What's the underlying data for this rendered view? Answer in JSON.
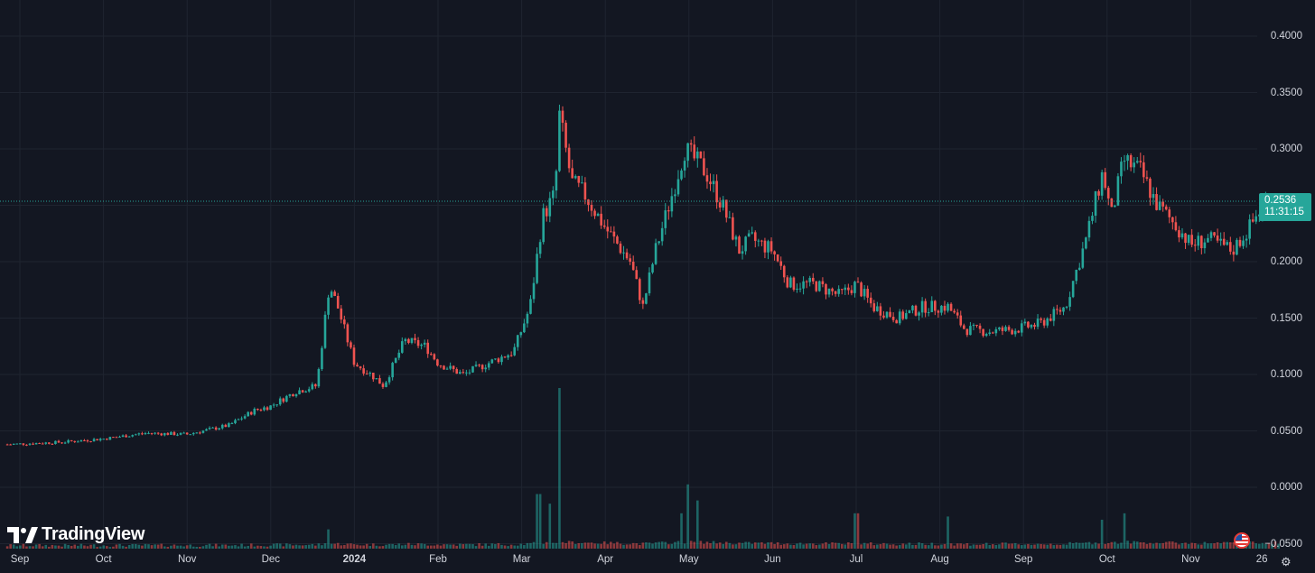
{
  "app": {
    "brand": "TradingView",
    "flag_icon": "us-flag-icon",
    "settings_icon": "gear-icon"
  },
  "price_badge": {
    "price": "0.2536",
    "countdown": "11:31:15"
  },
  "colors": {
    "background": "#131722",
    "up": "#26a69a",
    "down": "#ef5350",
    "grid": "#1f2430",
    "price_line": "#26a69a"
  },
  "chart_data": {
    "type": "candlestick",
    "title": "",
    "xlabel": "",
    "ylabel": "",
    "ylim": [
      -0.05,
      0.4
    ],
    "y_ticks": [
      "0.4000",
      "0.3500",
      "0.3000",
      "0.2500",
      "0.2000",
      "0.1500",
      "0.1000",
      "0.0500",
      "0.0000",
      "−0.0500"
    ],
    "x_ticks": [
      {
        "label": "Sep",
        "t": 0.0
      },
      {
        "label": "Oct",
        "t": 1.0
      },
      {
        "label": "Nov",
        "t": 2.0
      },
      {
        "label": "Dec",
        "t": 3.0
      },
      {
        "label": "2024",
        "t": 4.0,
        "bold": true
      },
      {
        "label": "Feb",
        "t": 5.0
      },
      {
        "label": "Mar",
        "t": 6.0
      },
      {
        "label": "Apr",
        "t": 7.0
      },
      {
        "label": "May",
        "t": 8.0
      },
      {
        "label": "Jun",
        "t": 9.0
      },
      {
        "label": "Jul",
        "t": 10.0
      },
      {
        "label": "Aug",
        "t": 11.0
      },
      {
        "label": "Sep",
        "t": 12.0
      },
      {
        "label": "Oct",
        "t": 13.0
      },
      {
        "label": "Nov",
        "t": 14.0
      },
      {
        "label": "26",
        "t": 14.85
      }
    ],
    "x_range": [
      -0.15,
      15.4
    ],
    "last_price": 0.2536,
    "price_path": [
      [
        -0.15,
        0.038
      ],
      [
        0.5,
        0.04
      ],
      [
        1.0,
        0.043
      ],
      [
        1.5,
        0.048
      ],
      [
        2.0,
        0.047
      ],
      [
        2.5,
        0.055
      ],
      [
        2.8,
        0.068
      ],
      [
        3.0,
        0.072
      ],
      [
        3.3,
        0.085
      ],
      [
        3.55,
        0.09
      ],
      [
        3.7,
        0.18
      ],
      [
        3.8,
        0.16
      ],
      [
        4.0,
        0.11
      ],
      [
        4.2,
        0.1
      ],
      [
        4.35,
        0.09
      ],
      [
        4.6,
        0.13
      ],
      [
        4.85,
        0.125
      ],
      [
        5.0,
        0.11
      ],
      [
        5.3,
        0.1
      ],
      [
        5.6,
        0.11
      ],
      [
        5.9,
        0.12
      ],
      [
        6.1,
        0.16
      ],
      [
        6.25,
        0.24
      ],
      [
        6.4,
        0.26
      ],
      [
        6.45,
        0.33
      ],
      [
        6.6,
        0.27
      ],
      [
        6.75,
        0.26
      ],
      [
        7.0,
        0.23
      ],
      [
        7.3,
        0.2
      ],
      [
        7.45,
        0.16
      ],
      [
        7.6,
        0.21
      ],
      [
        7.8,
        0.26
      ],
      [
        7.95,
        0.3
      ],
      [
        8.2,
        0.28
      ],
      [
        8.4,
        0.25
      ],
      [
        8.6,
        0.21
      ],
      [
        8.75,
        0.22
      ],
      [
        9.0,
        0.21
      ],
      [
        9.2,
        0.18
      ],
      [
        9.5,
        0.18
      ],
      [
        9.8,
        0.17
      ],
      [
        10.0,
        0.18
      ],
      [
        10.2,
        0.16
      ],
      [
        10.5,
        0.15
      ],
      [
        10.8,
        0.16
      ],
      [
        11.1,
        0.16
      ],
      [
        11.3,
        0.14
      ],
      [
        11.6,
        0.138
      ],
      [
        11.9,
        0.14
      ],
      [
        12.2,
        0.145
      ],
      [
        12.5,
        0.16
      ],
      [
        12.75,
        0.22
      ],
      [
        12.95,
        0.28
      ],
      [
        13.05,
        0.24
      ],
      [
        13.2,
        0.29
      ],
      [
        13.4,
        0.28
      ],
      [
        13.6,
        0.25
      ],
      [
        13.85,
        0.23
      ],
      [
        14.0,
        0.215
      ],
      [
        14.2,
        0.22
      ],
      [
        14.5,
        0.21
      ],
      [
        14.7,
        0.23
      ],
      [
        14.9,
        0.255
      ],
      [
        15.05,
        0.2536
      ]
    ],
    "volume_spikes": [
      {
        "t": 6.45,
        "v": 1.0
      },
      {
        "t": 8.0,
        "v": 0.4
      },
      {
        "t": 6.2,
        "v": 0.34
      },
      {
        "t": 8.1,
        "v": 0.3
      },
      {
        "t": 7.9,
        "v": 0.22
      },
      {
        "t": 6.35,
        "v": 0.28
      },
      {
        "t": 12.95,
        "v": 0.18
      },
      {
        "t": 13.2,
        "v": 0.22
      },
      {
        "t": 10.0,
        "v": 0.22
      },
      {
        "t": 11.1,
        "v": 0.2
      },
      {
        "t": 3.7,
        "v": 0.12
      }
    ]
  }
}
